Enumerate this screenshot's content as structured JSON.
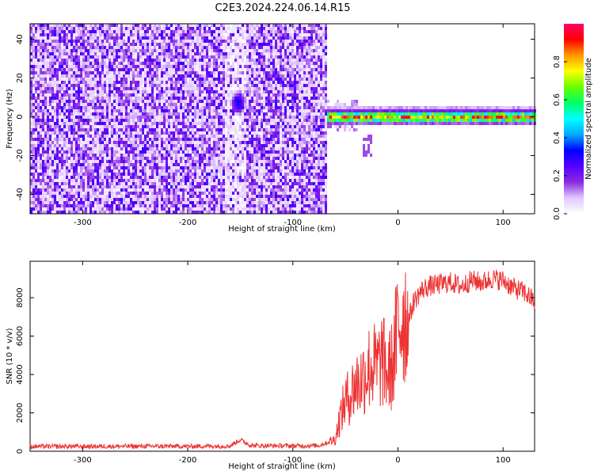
{
  "title": "C2E3.2024.224.06.14.R15",
  "chart_data": [
    {
      "type": "heatmap",
      "xlabel": "Height of straight line (km)",
      "ylabel": "Frequency (Hz)",
      "xlim": [
        -350,
        130
      ],
      "ylim": [
        -50,
        48
      ],
      "xticks": [
        -300,
        -200,
        -100,
        0,
        100
      ],
      "yticks": [
        -40,
        -20,
        0,
        20,
        40
      ],
      "colorbar": {
        "label": "Normalized spectral amplitude",
        "range": [
          0,
          1
        ],
        "ticks": [
          0.0,
          0.2,
          0.4,
          0.6,
          0.8
        ],
        "colormap": [
          "#ffffff",
          "#e0c8ff",
          "#8a2be2",
          "#5500ff",
          "#0000ff",
          "#00aaff",
          "#00ffff",
          "#00ff66",
          "#66ff00",
          "#ffff00",
          "#ff9900",
          "#ff0000",
          "#ff0066"
        ]
      },
      "features": [
        {
          "name": "noise",
          "x": [
            -350,
            -68
          ],
          "amplitude": 0.12
        },
        {
          "name": "blob",
          "x": -153,
          "y": 8,
          "amplitude": 0.3
        },
        {
          "name": "carrier",
          "x": [
            -68,
            130
          ],
          "y": 1,
          "amplitude": 0.6
        }
      ]
    },
    {
      "type": "line",
      "xlabel": "Height of straight line (km)",
      "ylabel": "SNR (10 * v/v)",
      "xlim": [
        -350,
        130
      ],
      "ylim": [
        0,
        9900
      ],
      "xticks": [
        -300,
        -200,
        -100,
        0,
        100
      ],
      "yticks": [
        0,
        2000,
        4000,
        6000,
        8000
      ],
      "color": "#ee3333",
      "x": [
        -350,
        -300,
        -250,
        -200,
        -160,
        -150,
        -140,
        -100,
        -75,
        -60,
        -55,
        -50,
        -45,
        -40,
        -35,
        -30,
        -25,
        -20,
        -15,
        -10,
        -5,
        0,
        5,
        10,
        15,
        20,
        25,
        30,
        40,
        50,
        60,
        70,
        80,
        90,
        100,
        110,
        120,
        130
      ],
      "y": [
        250,
        250,
        260,
        260,
        270,
        600,
        300,
        280,
        300,
        600,
        1800,
        2600,
        3000,
        3500,
        3700,
        4200,
        4500,
        4300,
        4800,
        4000,
        4500,
        6500,
        7200,
        6800,
        7800,
        8200,
        8500,
        8600,
        8700,
        8800,
        8600,
        8900,
        8800,
        9000,
        8900,
        8500,
        8300,
        7800
      ]
    }
  ]
}
